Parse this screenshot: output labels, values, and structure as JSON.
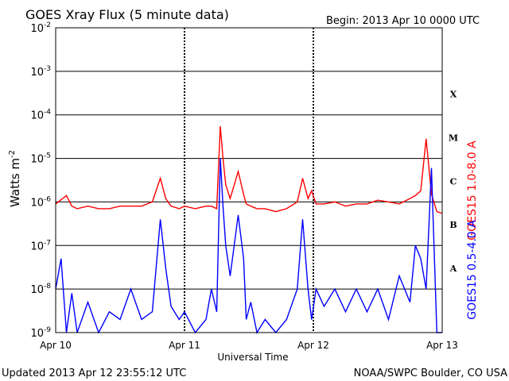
{
  "header": {
    "title": "GOES Xray Flux (5 minute data)",
    "begin": "Begin:  2013 Apr 10 0000 UTC"
  },
  "footer": {
    "updated": "Updated 2013 Apr 12 23:55:12 UTC",
    "credit": "NOAA/SWPC Boulder, CO USA"
  },
  "chart_data": {
    "type": "line",
    "title": "GOES Xray Flux (5 minute data)",
    "xlabel": "Universal Time",
    "ylabel_base": "Watts m",
    "ylabel_exp": "-2",
    "yscale": "log",
    "ylim": [
      1e-09,
      0.01
    ],
    "xlim": [
      "2013-04-10 00:00",
      "2013-04-13 00:00"
    ],
    "x_ticks": [
      "Apr 10",
      "Apr 11",
      "Apr 12",
      "Apr 13"
    ],
    "y_ticks": [
      {
        "value": 1e-09,
        "base": "10",
        "exp": "-9"
      },
      {
        "value": 1e-08,
        "base": "10",
        "exp": "-8"
      },
      {
        "value": 1e-07,
        "base": "10",
        "exp": "-7"
      },
      {
        "value": 1e-06,
        "base": "10",
        "exp": "-6"
      },
      {
        "value": 1e-05,
        "base": "10",
        "exp": "-5"
      },
      {
        "value": 0.0001,
        "base": "10",
        "exp": "-4"
      },
      {
        "value": 0.001,
        "base": "10",
        "exp": "-3"
      },
      {
        "value": 0.01,
        "base": "10",
        "exp": "-2"
      }
    ],
    "flare_classes": [
      {
        "label": "A",
        "value": 3e-08
      },
      {
        "label": "B",
        "value": 3e-07
      },
      {
        "label": "C",
        "value": 3e-06
      },
      {
        "label": "M",
        "value": 3e-05
      },
      {
        "label": "X",
        "value": 0.0003
      }
    ],
    "grid": true,
    "series": [
      {
        "name": "GOES15 1.0-8.0 A",
        "color": "#ff0000",
        "x": [
          "2013-04-10 00:00",
          "2013-04-10 02:00",
          "2013-04-10 03:00",
          "2013-04-10 04:00",
          "2013-04-10 06:00",
          "2013-04-10 08:00",
          "2013-04-10 10:00",
          "2013-04-10 12:00",
          "2013-04-10 14:00",
          "2013-04-10 16:00",
          "2013-04-10 18:00",
          "2013-04-10 19:30",
          "2013-04-10 20:30",
          "2013-04-10 21:30",
          "2013-04-10 23:00",
          "2013-04-11 00:00",
          "2013-04-11 02:00",
          "2013-04-11 04:00",
          "2013-04-11 05:00",
          "2013-04-11 06:00",
          "2013-04-11 06:40",
          "2013-04-11 07:10",
          "2013-04-11 07:40",
          "2013-04-11 08:30",
          "2013-04-11 10:00",
          "2013-04-11 11:00",
          "2013-04-11 11:30",
          "2013-04-11 12:20",
          "2013-04-11 13:30",
          "2013-04-11 15:00",
          "2013-04-11 17:00",
          "2013-04-11 19:00",
          "2013-04-11 21:00",
          "2013-04-11 22:00",
          "2013-04-11 23:00",
          "2013-04-11 23:40",
          "2013-04-12 00:30",
          "2013-04-12 02:00",
          "2013-04-12 04:00",
          "2013-04-12 06:00",
          "2013-04-12 08:00",
          "2013-04-12 10:00",
          "2013-04-12 12:00",
          "2013-04-12 14:00",
          "2013-04-12 16:00",
          "2013-04-12 18:00",
          "2013-04-12 19:00",
          "2013-04-12 20:00",
          "2013-04-12 21:00",
          "2013-04-12 22:00",
          "2013-04-12 23:00",
          "2013-04-12 23:55"
        ],
        "values": [
          9e-07,
          1.4e-06,
          8e-07,
          7e-07,
          8e-07,
          7e-07,
          7e-07,
          8e-07,
          8e-07,
          8e-07,
          1e-06,
          3.5e-06,
          1.2e-06,
          8e-07,
          7e-07,
          8e-07,
          7e-07,
          8e-07,
          8e-07,
          7e-07,
          5.5e-05,
          1e-05,
          2.5e-06,
          1.2e-06,
          5e-06,
          1.5e-06,
          9e-07,
          8e-07,
          7e-07,
          7e-07,
          6e-07,
          7e-07,
          1e-06,
          3.5e-06,
          1.2e-06,
          1.8e-06,
          9e-07,
          9e-07,
          1e-06,
          8e-07,
          9e-07,
          9e-07,
          1.1e-06,
          1e-06,
          9e-07,
          1.2e-06,
          1.4e-06,
          1.8e-06,
          2.8e-05,
          1.5e-06,
          6e-07,
          5.5e-07
        ]
      },
      {
        "name": "GOES15 0.5-4.0 A",
        "color": "#0000ff",
        "x": [
          "2013-04-10 00:00",
          "2013-04-10 01:00",
          "2013-04-10 02:00",
          "2013-04-10 03:00",
          "2013-04-10 04:00",
          "2013-04-10 06:00",
          "2013-04-10 08:00",
          "2013-04-10 10:00",
          "2013-04-10 12:00",
          "2013-04-10 14:00",
          "2013-04-10 16:00",
          "2013-04-10 18:00",
          "2013-04-10 19:30",
          "2013-04-10 20:30",
          "2013-04-10 21:30",
          "2013-04-10 23:00",
          "2013-04-11 00:00",
          "2013-04-11 02:00",
          "2013-04-11 04:00",
          "2013-04-11 05:00",
          "2013-04-11 06:00",
          "2013-04-11 06:40",
          "2013-04-11 07:10",
          "2013-04-11 07:40",
          "2013-04-11 08:30",
          "2013-04-11 10:00",
          "2013-04-11 11:00",
          "2013-04-11 11:30",
          "2013-04-11 12:20",
          "2013-04-11 13:30",
          "2013-04-11 15:00",
          "2013-04-11 17:00",
          "2013-04-11 19:00",
          "2013-04-11 21:00",
          "2013-04-11 22:00",
          "2013-04-11 23:00",
          "2013-04-11 23:40",
          "2013-04-12 00:30",
          "2013-04-12 02:00",
          "2013-04-12 04:00",
          "2013-04-12 06:00",
          "2013-04-12 08:00",
          "2013-04-12 10:00",
          "2013-04-12 12:00",
          "2013-04-12 14:00",
          "2013-04-12 16:00",
          "2013-04-12 18:00",
          "2013-04-12 19:00",
          "2013-04-12 20:00",
          "2013-04-12 21:00",
          "2013-04-12 22:00",
          "2013-04-12 23:00",
          "2013-04-12 23:55"
        ],
        "values": [
          1e-08,
          5e-08,
          1e-09,
          8e-09,
          1e-09,
          5e-09,
          1e-09,
          3e-09,
          2e-09,
          1e-08,
          2e-09,
          3e-09,
          4e-07,
          3e-08,
          4e-09,
          2e-09,
          3e-09,
          1e-09,
          2e-09,
          1e-08,
          3e-09,
          1e-05,
          8e-07,
          1e-07,
          2e-08,
          5e-07,
          5e-08,
          2e-09,
          5e-09,
          1e-09,
          2e-09,
          1e-09,
          2e-09,
          1e-08,
          4e-07,
          1e-08,
          2e-09,
          1e-08,
          4e-09,
          1e-08,
          3e-09,
          1e-08,
          3e-09,
          1e-08,
          2e-09,
          2e-08,
          5e-09,
          1e-07,
          5e-08,
          1e-08,
          6e-06,
          1e-09,
          1e-09
        ]
      }
    ]
  }
}
